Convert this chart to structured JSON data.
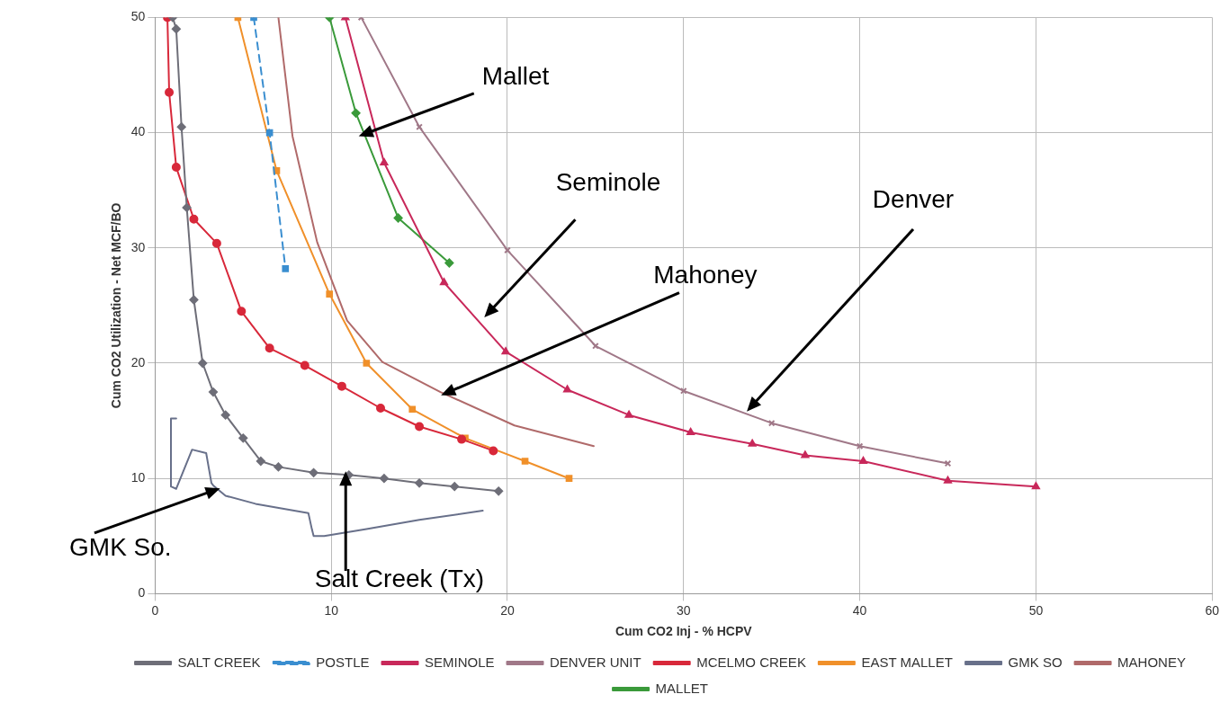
{
  "chart_data": {
    "type": "line",
    "xlabel": "Cum CO2 Inj - % HCPV",
    "ylabel": "Cum CO2 Utilization - Net MCF/BO",
    "xlim": [
      0,
      60
    ],
    "xticks": [
      0,
      10,
      20,
      30,
      40,
      50,
      60
    ],
    "ylim": [
      0,
      50
    ],
    "yticks": [
      0,
      10,
      20,
      30,
      40,
      50
    ],
    "grid": true,
    "legend": "bottom",
    "series": [
      {
        "name": "SALT CREEK",
        "color": "#6e6e78",
        "marker": "diamond",
        "x": [
          1.0,
          1.2,
          1.5,
          1.8,
          2.2,
          2.7,
          3.3,
          4,
          5,
          6,
          7,
          9,
          11,
          13,
          15,
          17,
          19.5
        ],
        "values": [
          50,
          49,
          40.5,
          33.5,
          25.5,
          20,
          17.5,
          15.5,
          13.5,
          11.5,
          11,
          10.5,
          10.3,
          10,
          9.6,
          9.3,
          8.9
        ]
      },
      {
        "name": "POSTLE",
        "color": "#3a8ed0",
        "marker": "square",
        "line_style": "dashed",
        "x": [
          5.6,
          6.5,
          7.4
        ],
        "values": [
          50,
          40,
          28.2
        ]
      },
      {
        "name": "SEMINOLE",
        "color": "#c8285a",
        "marker": "triangle",
        "x": [
          10.8,
          13.0,
          16.4,
          19.9,
          23.4,
          26.9,
          30.4,
          33.9,
          36.9,
          40.2,
          45,
          50
        ],
        "values": [
          50,
          37.4,
          27,
          21,
          17.7,
          15.5,
          14,
          13,
          12,
          11.5,
          9.8,
          9.3
        ]
      },
      {
        "name": "DENVER UNIT",
        "color": "#a07888",
        "marker": "cross",
        "x": [
          11.7,
          15,
          20,
          25,
          30,
          35,
          40,
          45
        ],
        "values": [
          50,
          40.5,
          29.8,
          21.5,
          17.6,
          14.8,
          12.8,
          11.3
        ]
      },
      {
        "name": "MCELMO CREEK",
        "color": "#d8283a",
        "marker": "circle",
        "x": [
          0.7,
          0.8,
          1.2,
          2.2,
          3.5,
          4.9,
          6.5,
          8.5,
          10.6,
          12.8,
          15,
          17.4,
          19.2
        ],
        "values": [
          50,
          43.5,
          37,
          32.5,
          30.4,
          24.5,
          21.3,
          19.8,
          18,
          16.1,
          14.5,
          13.4,
          12.4
        ]
      },
      {
        "name": "EAST MALLET",
        "color": "#f0902a",
        "marker": "square",
        "x": [
          4.7,
          6.9,
          9.9,
          12,
          14.6,
          17.6,
          21,
          23.5
        ],
        "values": [
          50,
          36.7,
          26,
          20,
          16,
          13.5,
          11.5,
          10
        ]
      },
      {
        "name": "GMK SO",
        "color": "#68708a",
        "marker": "none",
        "x": [
          1.2,
          0.9,
          0.9,
          1.2,
          2.1,
          2.9,
          3.2,
          3.3,
          4,
          5.7,
          8.7,
          8.9,
          9,
          9.6,
          12,
          15,
          18.6
        ],
        "values": [
          15.2,
          15.2,
          9.3,
          9.1,
          12.5,
          12.2,
          9.6,
          9.4,
          8.5,
          7.8,
          7.0,
          5.6,
          5.0,
          5.0,
          5.6,
          6.4,
          7.2
        ]
      },
      {
        "name": "MAHONEY",
        "color": "#b06a6a",
        "marker": "none",
        "x": [
          7.0,
          7.8,
          9.2,
          10.9,
          12.9,
          16.2,
          20.4,
          24.9
        ],
        "values": [
          50,
          39.7,
          30.5,
          23.7,
          20.1,
          17.5,
          14.6,
          12.8
        ]
      },
      {
        "name": "MALLET",
        "color": "#3a9a3a",
        "marker": "diamond",
        "x": [
          9.9,
          11.4,
          13.8,
          16.7
        ],
        "values": [
          50,
          41.7,
          32.6,
          28.7
        ]
      }
    ],
    "annotations": [
      "Mallet",
      "Seminole",
      "Mahoney",
      "Denver",
      "GMK So.",
      "Salt Creek (Tx)"
    ]
  }
}
